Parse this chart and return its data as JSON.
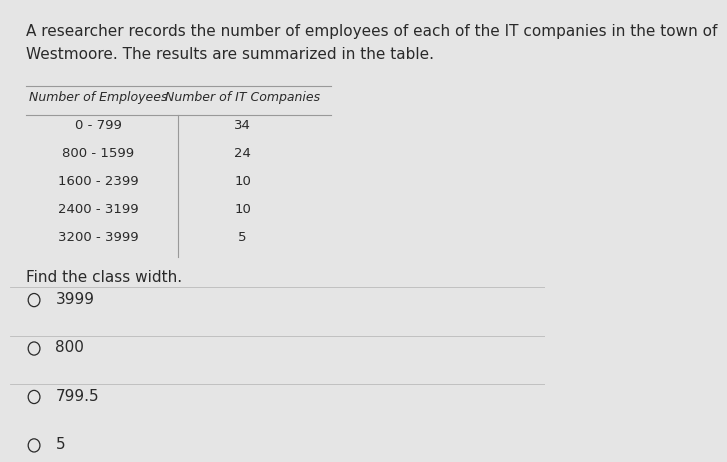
{
  "background_color": "#e5e5e5",
  "intro_text_line1": "A researcher records the number of employees of each of the IT companies in the town of",
  "intro_text_line2": "Westmoore. The results are summarized in the table.",
  "table_header_col1": "Number of Employees",
  "table_header_col2": "Number of IT Companies",
  "table_rows": [
    [
      "0 - 799",
      "34"
    ],
    [
      "800 - 1599",
      "24"
    ],
    [
      "1600 - 2399",
      "10"
    ],
    [
      "2400 - 3199",
      "10"
    ],
    [
      "3200 - 3999",
      "5"
    ]
  ],
  "question_text": "Find the class width.",
  "options": [
    "3999",
    "800",
    "799.5",
    "5"
  ],
  "text_color": "#2a2a2a",
  "line_color": "#999999",
  "option_line_color": "#bbbbbb",
  "header_fontsize": 9.0,
  "body_fontsize": 9.5,
  "intro_fontsize": 11.0,
  "question_fontsize": 11.0,
  "option_fontsize": 11.0
}
